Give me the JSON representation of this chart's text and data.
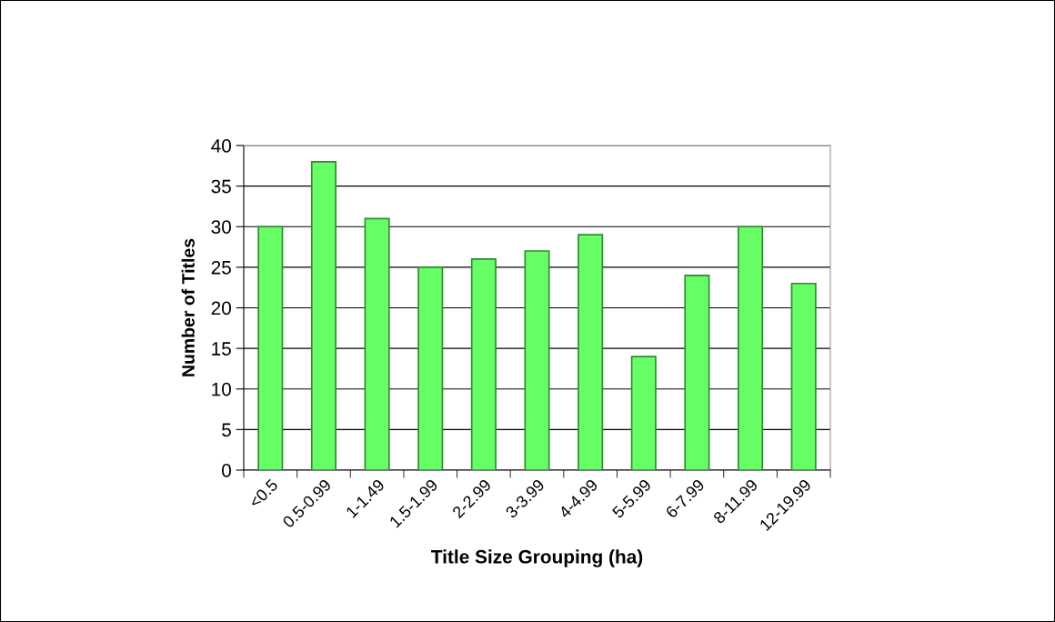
{
  "chart_data": {
    "type": "bar",
    "xlabel": "Title Size Grouping (ha)",
    "ylabel": "Number of Titles",
    "categories": [
      "<0.5",
      "0.5-0.99",
      "1-1.49",
      "1.5-1.99",
      "2-2.99",
      "3-3.99",
      "4-4.99",
      "5-5.99",
      "6-7.99",
      "8-11.99",
      "12-19.99"
    ],
    "values": [
      30,
      38,
      31,
      25,
      26,
      27,
      29,
      14,
      24,
      30,
      23
    ],
    "color": "#66ff66",
    "ylim": [
      0,
      40
    ],
    "yticks": [
      0,
      5,
      10,
      15,
      20,
      25,
      30,
      35,
      40
    ],
    "grid": "y",
    "legend": false
  }
}
